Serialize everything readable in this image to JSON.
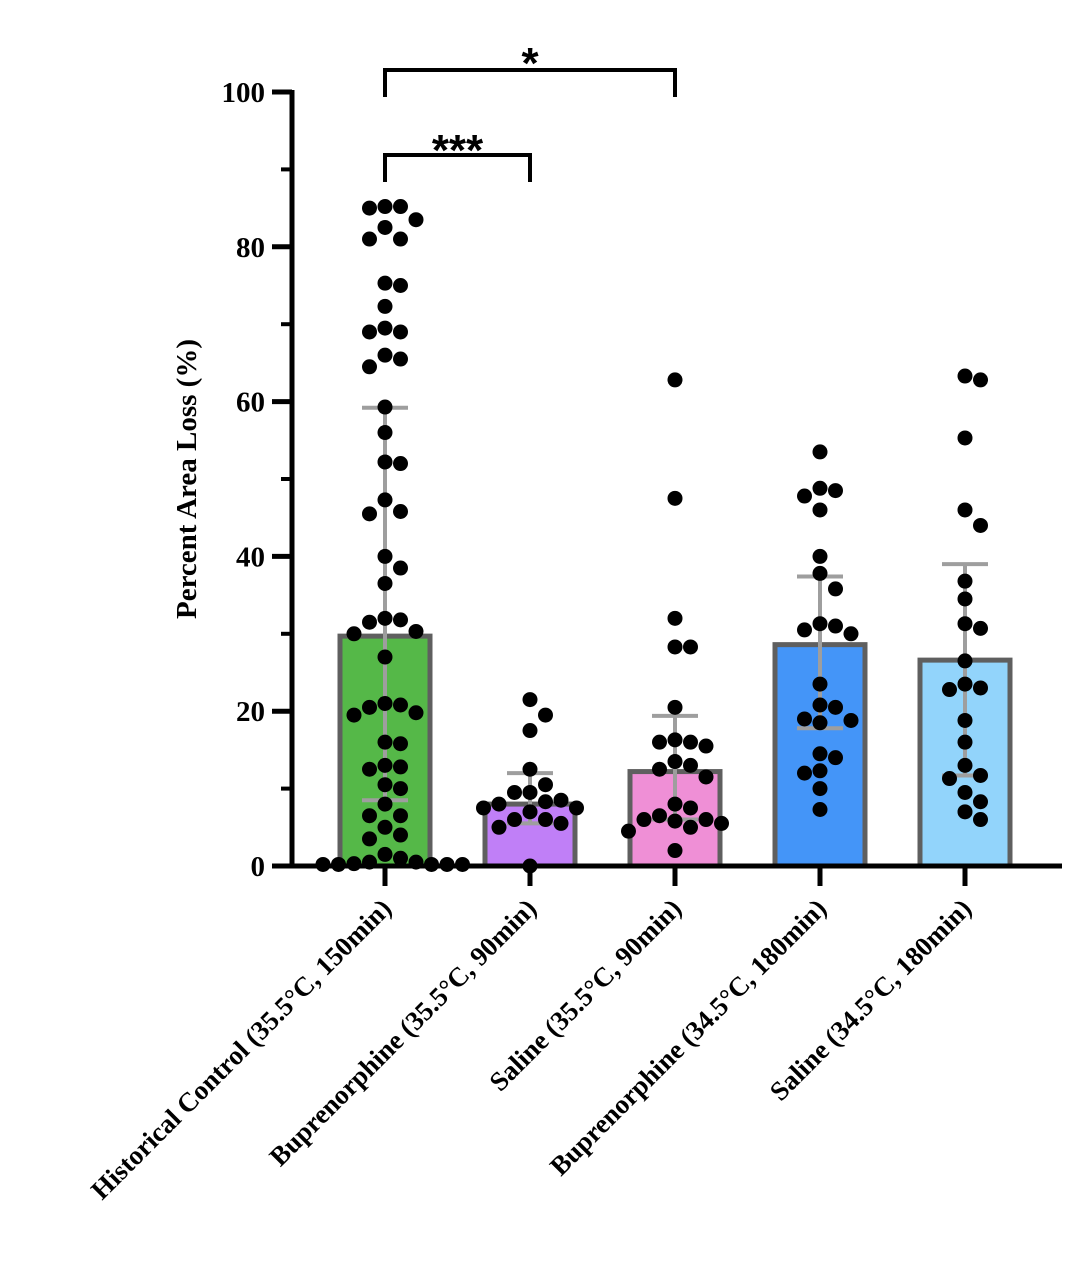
{
  "chart_data": {
    "type": "bar",
    "title": "",
    "xlabel": "",
    "ylabel": "Percent Area Loss (%)",
    "ylim": [
      0,
      100
    ],
    "yticks": [
      0,
      20,
      40,
      60,
      80,
      100
    ],
    "grid": false,
    "legend": "none",
    "categories": [
      "Historical Control (35.5°C, 150min)",
      "Buprenorphine (35.5°C, 90min)",
      "Saline (35.5°C, 90min)",
      "Buprenorphine (34.5°C, 180min)",
      "Saline (34.5°C, 180min)"
    ],
    "colors": [
      "#55b848",
      "#c07ff7",
      "#ef8fd6",
      "#4495f8",
      "#92d4fb"
    ],
    "bar_edge_color": "#5f5f5f",
    "error_color": "#9e9e9e",
    "values": [
      29.7,
      8.0,
      12.2,
      28.6,
      26.6
    ],
    "error_low": [
      8.5,
      5.5,
      6.0,
      17.8,
      11.7
    ],
    "error_high": [
      59.2,
      12.0,
      19.4,
      37.4,
      39.0
    ],
    "points": [
      [
        85.2,
        85.0,
        85.2,
        83.5,
        82.5,
        81.0,
        81.0,
        75.3,
        75.0,
        72.3,
        69.5,
        69.0,
        69.0,
        66.0,
        65.5,
        64.5,
        59.3,
        56.0,
        52.2,
        52.0,
        47.3,
        45.8,
        45.5,
        40.0,
        38.5,
        36.5,
        32.0,
        31.8,
        31.5,
        30.3,
        30.0,
        27.0,
        21.0,
        20.8,
        20.5,
        19.8,
        19.5,
        16.0,
        15.8,
        13.0,
        12.8,
        12.5,
        10.5,
        10.0,
        8.0,
        6.5,
        6.5,
        5.0,
        4.0,
        3.5,
        1.5,
        1.0,
        0.5,
        0.5,
        0.3,
        0.2,
        0.2,
        0.2,
        0.2,
        0.2
      ],
      [
        21.5,
        19.5,
        17.5,
        12.5,
        10.5,
        9.5,
        9.5,
        8.5,
        8.3,
        8.0,
        7.5,
        7.5,
        7.0,
        6.0,
        6.0,
        5.5,
        5.0,
        0.0
      ],
      [
        62.8,
        47.5,
        32.0,
        28.3,
        28.3,
        20.5,
        16.3,
        16.0,
        16.0,
        15.5,
        13.5,
        13.0,
        12.5,
        11.5,
        8.0,
        7.5,
        6.5,
        6.0,
        6.0,
        5.8,
        5.5,
        5.0,
        4.5,
        2.0
      ],
      [
        53.5,
        48.8,
        48.5,
        47.8,
        46.0,
        40.0,
        37.8,
        35.8,
        31.3,
        31.0,
        30.5,
        30.0,
        23.5,
        20.8,
        20.5,
        19.0,
        18.8,
        18.5,
        14.5,
        14.0,
        12.3,
        12.0,
        10.0,
        7.3
      ],
      [
        63.3,
        62.8,
        55.3,
        46.0,
        44.0,
        36.8,
        34.5,
        31.3,
        30.7,
        26.5,
        23.5,
        23.0,
        22.8,
        18.8,
        16.0,
        13.0,
        11.7,
        11.3,
        9.5,
        8.3,
        7.0,
        6.0
      ]
    ],
    "significance": [
      {
        "from": 0,
        "to": 1,
        "label": "***"
      },
      {
        "from": 0,
        "to": 2,
        "label": "*"
      }
    ]
  }
}
